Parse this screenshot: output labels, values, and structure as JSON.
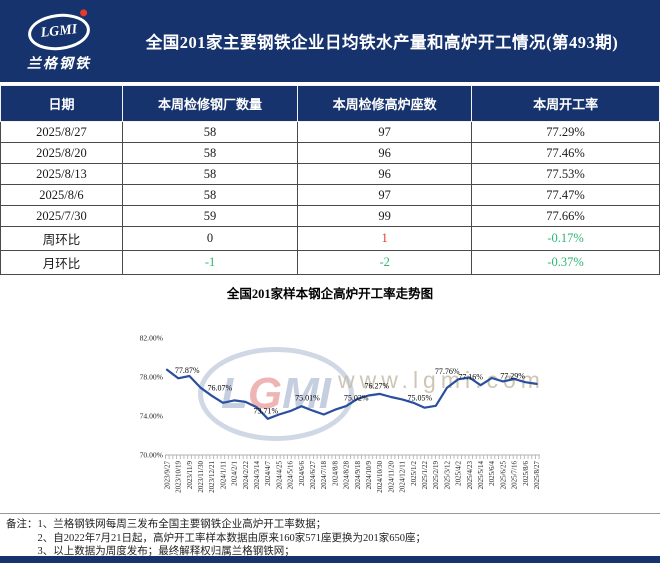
{
  "header": {
    "logo_abbr": "LGMI",
    "logo_name": "兰格钢铁",
    "title": "全国201家主要钢铁企业日均铁水产量和高炉开工情况(第493期)"
  },
  "table": {
    "columns": [
      "日期",
      "本周检修钢厂数量",
      "本周检修高炉座数",
      "本周开工率"
    ],
    "rows": [
      {
        "cells": [
          "2025/8/27",
          "58",
          "97",
          "77.29%"
        ],
        "cell_colors": [
          "default",
          "default",
          "default",
          "default"
        ]
      },
      {
        "cells": [
          "2025/8/20",
          "58",
          "96",
          "77.46%"
        ],
        "cell_colors": [
          "default",
          "default",
          "default",
          "default"
        ]
      },
      {
        "cells": [
          "2025/8/13",
          "58",
          "96",
          "77.53%"
        ],
        "cell_colors": [
          "default",
          "default",
          "default",
          "default"
        ]
      },
      {
        "cells": [
          "2025/8/6",
          "58",
          "97",
          "77.47%"
        ],
        "cell_colors": [
          "default",
          "default",
          "default",
          "default"
        ]
      },
      {
        "cells": [
          "2025/7/30",
          "59",
          "99",
          "77.66%"
        ],
        "cell_colors": [
          "default",
          "default",
          "default",
          "default"
        ]
      },
      {
        "cells": [
          "周环比",
          "0",
          "1",
          "-0.17%"
        ],
        "cell_colors": [
          "default",
          "default",
          "red",
          "green"
        ]
      },
      {
        "cells": [
          "月环比",
          "-1",
          "-2",
          "-0.37%"
        ],
        "cell_colors": [
          "default",
          "green",
          "green",
          "green"
        ]
      }
    ]
  },
  "chart_data": {
    "type": "line",
    "title": "全国201家样本钢企高炉开工率走势图",
    "xlabel": "",
    "ylabel": "",
    "ylim": [
      70,
      82
    ],
    "grid": false,
    "legend": "none",
    "y_ticks": [
      {
        "label": "82.00%",
        "value": 82
      },
      {
        "label": "78.00%",
        "value": 78
      },
      {
        "label": "74.00%",
        "value": 74
      },
      {
        "label": "70.00%",
        "value": 70
      }
    ],
    "x": [
      "2023/9/27",
      "2023/10/19",
      "2023/11/9",
      "2023/11/30",
      "2023/12/21",
      "2024/1/11",
      "2024/2/1",
      "2024/2/22",
      "2024/3/14",
      "2024/4/7",
      "2024/4/25",
      "2024/5/16",
      "2024/6/6",
      "2024/6/27",
      "2024/7/18",
      "2024/8/8",
      "2024/8/28",
      "2024/9/18",
      "2024/10/9",
      "2024/10/30",
      "2024/11/20",
      "2024/12/11",
      "2025/1/2",
      "2025/1/22",
      "2025/2/19",
      "2025/3/12",
      "2025/4/2",
      "2025/4/23",
      "2025/5/14",
      "2025/6/4",
      "2025/6/25",
      "2025/7/16",
      "2025/8/6",
      "2025/8/27"
    ],
    "values": [
      78.75,
      77.87,
      78.1,
      76.9,
      76.07,
      75.35,
      75.6,
      75.45,
      74.9,
      73.71,
      74.15,
      74.5,
      75.01,
      74.55,
      74.15,
      74.65,
      75.02,
      75.75,
      76.1,
      76.27,
      75.95,
      75.7,
      75.35,
      74.85,
      75.05,
      76.9,
      77.76,
      77.95,
      77.16,
      77.9,
      77.55,
      77.8,
      77.47,
      77.29
    ],
    "point_labels": [
      {
        "index": 1,
        "text": "77.87%"
      },
      {
        "index": 4,
        "text": "76.07%"
      },
      {
        "index": 9,
        "text": "73.71%"
      },
      {
        "index": 12,
        "text": "75.01%"
      },
      {
        "index": 16,
        "text": "75.02%"
      },
      {
        "index": 19,
        "text": "76.27%"
      },
      {
        "index": 24,
        "text": "75.05%"
      },
      {
        "index": 26,
        "text": "77.76%"
      },
      {
        "index": 28,
        "text": "77.16%"
      },
      {
        "index": 33,
        "text": "77.29%"
      }
    ],
    "watermark_logo": "LGMI",
    "watermark_url": "www.lgmi.com"
  },
  "notes": {
    "label": "备注：",
    "items": [
      "1、兰格钢铁网每周三发布全国主要钢铁企业高炉开工率数据；",
      "2、自2022年7月21日起，高炉开工率样本数据由原来160家571座更换为201家650座；",
      "3、以上数据为周度发布；最终解释权归属兰格钢铁网；"
    ]
  },
  "colors": {
    "navy": "#16336e",
    "red": "#e8392a",
    "green": "#2db672",
    "chart_line": "#2a4f9e"
  }
}
